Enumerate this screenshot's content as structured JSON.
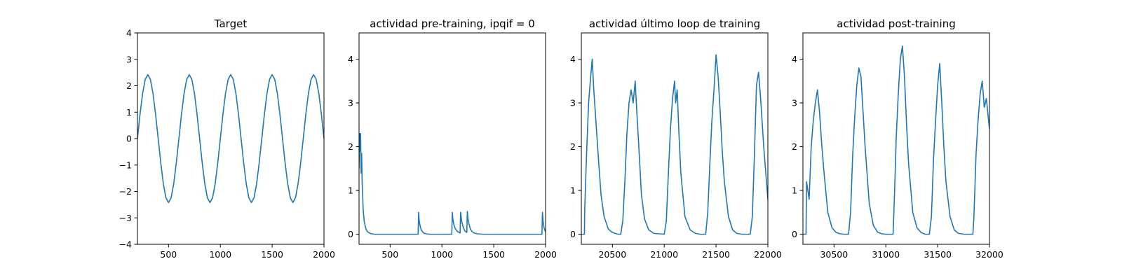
{
  "chart_data": [
    {
      "type": "line",
      "title": "Target",
      "xlabel": "",
      "ylabel": "",
      "xlim": [
        200,
        2000
      ],
      "ylim": [
        -4,
        4
      ],
      "xticks": [
        500,
        1000,
        1500,
        2000
      ],
      "yticks": [
        -4,
        -3,
        -2,
        -1,
        0,
        1,
        2,
        3,
        4
      ],
      "grid": false,
      "series": [
        {
          "color": "#1f77b4",
          "x": [
            200,
            225,
            250,
            275,
            300,
            325,
            350,
            375,
            400,
            425,
            450,
            475,
            500,
            525,
            550,
            575,
            600,
            625,
            650,
            675,
            700,
            725,
            750,
            775,
            800,
            825,
            850,
            875,
            900,
            925,
            950,
            975,
            1000,
            1025,
            1050,
            1075,
            1100,
            1125,
            1150,
            1175,
            1200,
            1225,
            1250,
            1275,
            1300,
            1325,
            1350,
            1375,
            1400,
            1425,
            1450,
            1475,
            1500,
            1525,
            1550,
            1575,
            1600,
            1625,
            1650,
            1675,
            1700,
            1725,
            1750,
            1775,
            1800,
            1825,
            1850,
            1875,
            1900,
            1925,
            1950,
            1975,
            2000
          ],
          "y": [
            0.0,
            0.92,
            1.71,
            2.24,
            2.42,
            2.24,
            1.71,
            0.92,
            0.0,
            -0.92,
            -1.71,
            -2.24,
            -2.42,
            -2.24,
            -1.71,
            -0.92,
            0.0,
            0.92,
            1.71,
            2.24,
            2.42,
            2.24,
            1.71,
            0.92,
            0.0,
            -0.92,
            -1.71,
            -2.24,
            -2.42,
            -2.24,
            -1.71,
            -0.92,
            0.0,
            0.92,
            1.71,
            2.24,
            2.42,
            2.24,
            1.71,
            0.92,
            0.0,
            -0.92,
            -1.71,
            -2.24,
            -2.42,
            -2.24,
            -1.71,
            -0.92,
            0.0,
            0.92,
            1.71,
            2.24,
            2.42,
            2.24,
            1.71,
            0.92,
            0.0,
            -0.92,
            -1.71,
            -2.24,
            -2.42,
            -2.24,
            -1.71,
            -0.92,
            0.0,
            0.92,
            1.71,
            2.24,
            2.42,
            2.24,
            1.71,
            0.92,
            0.0
          ]
        }
      ]
    },
    {
      "type": "line",
      "title": "actividad pre-training, ipqif = 0",
      "xlabel": "",
      "ylabel": "",
      "xlim": [
        200,
        2000
      ],
      "ylim": [
        -0.23,
        4.6
      ],
      "xticks": [
        500,
        1000,
        1500,
        2000
      ],
      "yticks": [
        0,
        1,
        2,
        3,
        4
      ],
      "grid": false,
      "series": [
        {
          "color": "#1f77b4",
          "x": [
            200,
            205,
            210,
            215,
            220,
            225,
            230,
            235,
            240,
            250,
            260,
            270,
            285,
            300,
            320,
            350,
            400,
            500,
            600,
            700,
            770,
            775,
            780,
            790,
            800,
            815,
            830,
            850,
            880,
            950,
            1050,
            1095,
            1100,
            1105,
            1115,
            1130,
            1150,
            1175,
            1180,
            1190,
            1205,
            1220,
            1240,
            1245,
            1250,
            1260,
            1275,
            1290,
            1310,
            1340,
            1400,
            1500,
            1700,
            1900,
            1965,
            1970,
            1975,
            1985,
            2000
          ],
          "y": [
            1.5,
            2.3,
            1.9,
            2.3,
            1.4,
            1.85,
            1.2,
            0.9,
            0.55,
            0.3,
            0.18,
            0.1,
            0.05,
            0.03,
            0.01,
            0.0,
            0.0,
            0.0,
            0.0,
            0.0,
            0.0,
            0.5,
            0.32,
            0.18,
            0.1,
            0.05,
            0.02,
            0.01,
            0.0,
            0.0,
            0.0,
            0.0,
            0.5,
            0.35,
            0.22,
            0.12,
            0.06,
            0.03,
            0.5,
            0.3,
            0.16,
            0.08,
            0.04,
            0.52,
            0.38,
            0.24,
            0.12,
            0.06,
            0.03,
            0.01,
            0.0,
            0.0,
            0.0,
            0.0,
            0.0,
            0.5,
            0.32,
            0.15,
            0.05
          ]
        }
      ]
    },
    {
      "type": "line",
      "title": "actividad último loop de training",
      "xlabel": "",
      "ylabel": "",
      "xlim": [
        20200,
        22000
      ],
      "ylim": [
        -0.23,
        4.6
      ],
      "xticks": [
        20500,
        21000,
        21500,
        22000
      ],
      "yticks": [
        0,
        1,
        2,
        3,
        4
      ],
      "grid": false,
      "series": [
        {
          "color": "#1f77b4",
          "x": [
            20200,
            20230,
            20232,
            20250,
            20270,
            20290,
            20305,
            20320,
            20340,
            20360,
            20390,
            20420,
            20460,
            20500,
            20540,
            20560,
            20580,
            20600,
            20620,
            20640,
            20660,
            20680,
            20700,
            20720,
            20735,
            20750,
            20780,
            20810,
            20850,
            20900,
            20950,
            21000,
            21020,
            21040,
            21060,
            21080,
            21100,
            21110,
            21125,
            21140,
            21160,
            21200,
            21250,
            21300,
            21350,
            21400,
            21420,
            21440,
            21460,
            21480,
            21500,
            21520,
            21540,
            21560,
            21580,
            21620,
            21660,
            21700,
            21750,
            21800,
            21830,
            21850,
            21870,
            21880,
            21890,
            21910,
            21930,
            21960,
            22000
          ],
          "y": [
            0.0,
            0.0,
            0.5,
            1.8,
            3.0,
            3.6,
            4.0,
            3.3,
            2.6,
            1.9,
            0.9,
            0.4,
            0.12,
            0.04,
            0.01,
            0.0,
            0.0,
            0.3,
            1.2,
            2.3,
            3.0,
            3.3,
            3.0,
            3.5,
            2.8,
            2.2,
            0.9,
            0.35,
            0.1,
            0.02,
            0.01,
            0.0,
            0.3,
            1.4,
            2.4,
            3.1,
            3.5,
            3.0,
            3.3,
            2.4,
            1.4,
            0.4,
            0.1,
            0.02,
            0.0,
            0.0,
            0.5,
            1.6,
            2.6,
            3.3,
            4.1,
            3.6,
            2.8,
            1.9,
            1.2,
            0.4,
            0.1,
            0.02,
            0.0,
            0.0,
            0.0,
            0.4,
            1.8,
            2.6,
            3.4,
            3.7,
            3.1,
            2.0,
            0.8
          ]
        }
      ]
    },
    {
      "type": "line",
      "title": "actividad post-training",
      "xlabel": "",
      "ylabel": "",
      "xlim": [
        30200,
        32000
      ],
      "ylim": [
        -0.23,
        4.6
      ],
      "xticks": [
        30500,
        31000,
        31500,
        32000
      ],
      "yticks": [
        0,
        1,
        2,
        3,
        4
      ],
      "grid": false,
      "series": [
        {
          "color": "#1f77b4",
          "x": [
            30200,
            30230,
            30235,
            30260,
            30280,
            30300,
            30320,
            30340,
            30360,
            30380,
            30400,
            30440,
            30480,
            30520,
            30560,
            30600,
            30640,
            30660,
            30680,
            30700,
            30720,
            30740,
            30760,
            30780,
            30800,
            30840,
            30880,
            30920,
            30960,
            31000,
            31040,
            31070,
            31085,
            31100,
            31120,
            31140,
            31160,
            31180,
            31200,
            31220,
            31260,
            31300,
            31340,
            31380,
            31420,
            31440,
            31460,
            31480,
            31500,
            31520,
            31540,
            31560,
            31580,
            31620,
            31660,
            31700,
            31760,
            31820,
            31840,
            31850,
            31870,
            31890,
            31910,
            31930,
            31950,
            31970,
            32000
          ],
          "y": [
            0.0,
            0.0,
            1.2,
            0.8,
            2.0,
            2.6,
            3.0,
            3.3,
            2.8,
            2.1,
            1.5,
            0.5,
            0.15,
            0.04,
            0.01,
            0.0,
            0.0,
            0.5,
            1.8,
            2.7,
            3.4,
            3.8,
            3.6,
            2.8,
            2.0,
            0.7,
            0.2,
            0.05,
            0.01,
            0.0,
            0.0,
            0.0,
            1.0,
            2.2,
            3.2,
            4.0,
            4.3,
            3.6,
            2.5,
            1.6,
            0.5,
            0.15,
            0.04,
            0.0,
            0.0,
            0.4,
            1.7,
            2.6,
            3.4,
            3.9,
            3.0,
            2.0,
            1.2,
            0.4,
            0.1,
            0.02,
            0.0,
            0.0,
            0.0,
            0.4,
            1.8,
            2.6,
            3.2,
            3.5,
            2.9,
            3.1,
            2.4
          ]
        }
      ]
    }
  ]
}
